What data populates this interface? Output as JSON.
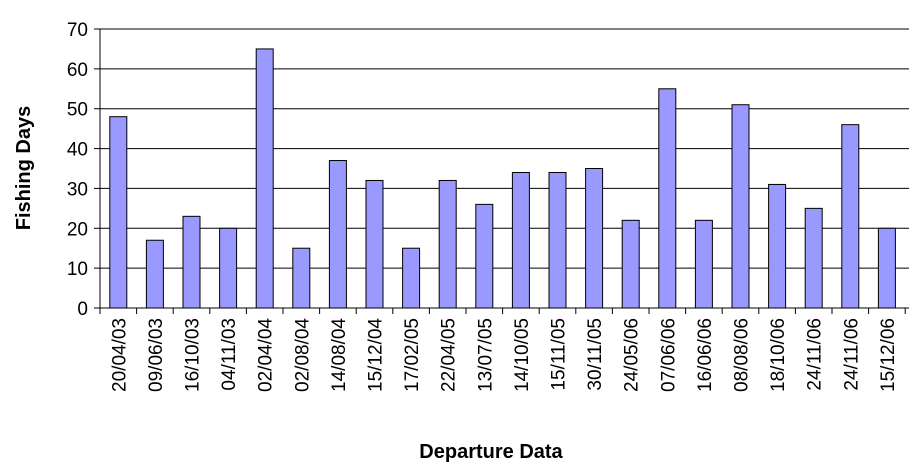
{
  "chart_data": {
    "type": "bar",
    "title": "",
    "xlabel": "Departure Data",
    "ylabel": "Fishing Days",
    "ylim": [
      0,
      70
    ],
    "yticks": [
      "0",
      "10",
      "20",
      "30",
      "40",
      "50",
      "60",
      "70"
    ],
    "grid": true,
    "legend": "none",
    "bar_color": "#9999ff",
    "categories": [
      "20/04/03",
      "09/06/03",
      "16/10/03",
      "04/11/03",
      "02/04/04",
      "02/08/04",
      "14/08/04",
      "15/12/04",
      "17/02/05",
      "22/04/05",
      "13/07/05",
      "14/10/05",
      "15/11/05",
      "30/11/05",
      "24/05/06",
      "07/06/06",
      "16/06/06",
      "08/08/06",
      "18/10/06",
      "24/11/06",
      "24/11/06",
      "15/12/06"
    ],
    "values": [
      48,
      17,
      23,
      20,
      65,
      15,
      37,
      32,
      15,
      32,
      26,
      34,
      34,
      35,
      22,
      55,
      22,
      51,
      31,
      25,
      46,
      20
    ]
  }
}
